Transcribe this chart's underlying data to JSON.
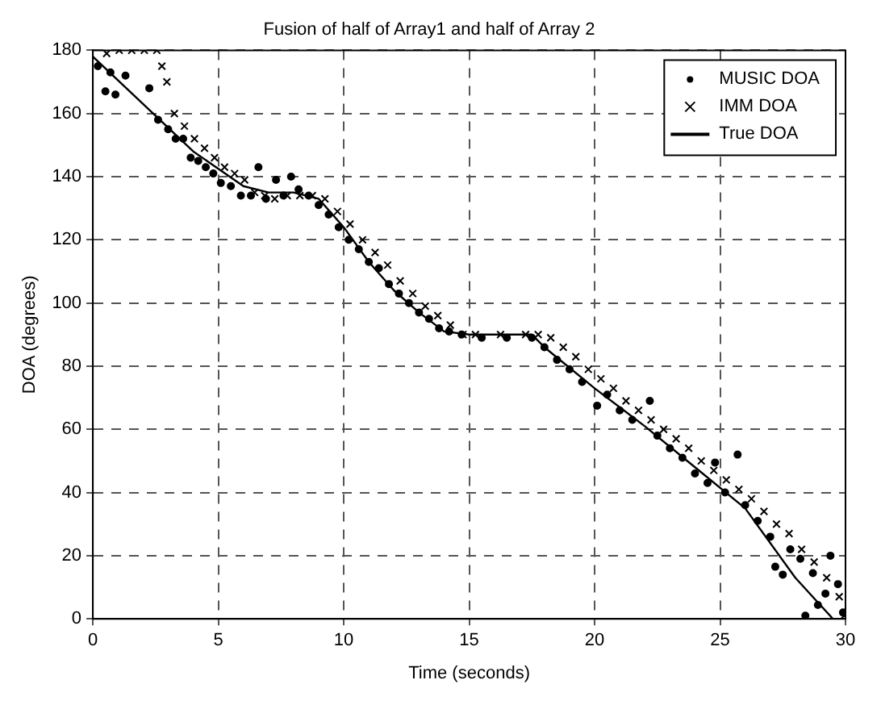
{
  "chart_data": {
    "type": "scatter",
    "title": "Fusion of half of Array1 and half of Array 2",
    "xlabel": "Time (seconds)",
    "ylabel": "DOA (degrees)",
    "xlim": [
      0,
      30
    ],
    "xticks": [
      0,
      5,
      10,
      15,
      20,
      25,
      30
    ],
    "ylim": [
      0,
      180
    ],
    "yticks": [
      0,
      20,
      40,
      60,
      80,
      100,
      120,
      140,
      160,
      180
    ],
    "grid": true,
    "legend": "top right",
    "series": [
      {
        "name": "MUSIC DOA",
        "type": "scatter",
        "marker": "circle",
        "color": "#000000",
        "x": [
          0.2,
          0.5,
          0.7,
          0.9,
          1.3,
          2.25,
          2.6,
          3.0,
          3.3,
          3.6,
          3.9,
          4.2,
          4.5,
          4.8,
          5.1,
          5.5,
          5.9,
          6.3,
          6.6,
          6.9,
          7.3,
          7.6,
          7.9,
          8.2,
          8.6,
          9.0,
          9.4,
          9.8,
          10.2,
          10.6,
          11.0,
          11.4,
          11.8,
          12.2,
          12.6,
          13.0,
          13.4,
          13.8,
          14.2,
          14.7,
          15.5,
          16.5,
          17.5,
          18.0,
          18.5,
          19.0,
          19.5,
          20.1,
          20.5,
          21.0,
          21.5,
          22.2,
          22.5,
          23.0,
          23.5,
          24.0,
          24.5,
          24.8,
          25.2,
          25.7,
          26.0,
          26.5,
          27.0,
          27.2,
          27.5,
          27.8,
          28.2,
          28.4,
          28.7,
          28.9,
          29.2,
          29.4,
          29.7,
          29.9
        ],
        "values": [
          175,
          167,
          173,
          166,
          172,
          168,
          158,
          155,
          152,
          152,
          146,
          145,
          143,
          141,
          138,
          137,
          134,
          134,
          143,
          133,
          139,
          134,
          140,
          136,
          134,
          131,
          128,
          124,
          120,
          117,
          113,
          111,
          106,
          103,
          100,
          97,
          95,
          92,
          91,
          90,
          89,
          89,
          89,
          86,
          82,
          79,
          75,
          67.5,
          71,
          66,
          63,
          69,
          58,
          54,
          51,
          46,
          43,
          49.5,
          40,
          52,
          36,
          31,
          26,
          16.5,
          14,
          22,
          19,
          1,
          14.5,
          4.4,
          8,
          20,
          11,
          2
        ]
      },
      {
        "name": "IMM DOA",
        "type": "scatter",
        "marker": "cross",
        "color": "#000000",
        "x": [
          0.55,
          1.05,
          1.55,
          2.05,
          2.55,
          2.75,
          2.95,
          3.25,
          3.65,
          4.05,
          4.45,
          4.85,
          5.25,
          5.65,
          6.05,
          6.45,
          6.85,
          7.25,
          7.75,
          8.25,
          8.75,
          9.25,
          9.75,
          10.25,
          10.75,
          11.25,
          11.75,
          12.25,
          12.75,
          13.25,
          13.75,
          14.25,
          14.75,
          15.25,
          16.25,
          17.25,
          17.75,
          18.25,
          18.75,
          19.25,
          19.75,
          20.25,
          20.75,
          21.25,
          21.75,
          22.25,
          22.75,
          23.25,
          23.75,
          24.25,
          24.75,
          25.25,
          25.75,
          26.25,
          26.75,
          27.25,
          27.75,
          28.25,
          28.75,
          29.25,
          29.75,
          29.95
        ],
        "values": [
          179,
          180,
          180,
          180,
          180,
          175,
          170,
          160,
          156,
          152,
          149,
          146,
          143,
          141,
          139,
          135,
          134,
          133,
          134,
          134,
          134,
          133,
          129,
          125,
          120,
          116,
          112,
          107,
          103,
          99,
          96,
          93,
          90,
          90,
          90,
          90,
          90,
          89,
          86,
          83,
          79,
          76,
          73,
          69,
          66,
          63,
          60,
          57,
          54,
          50,
          47,
          44,
          41,
          38,
          34,
          30,
          27,
          22,
          18,
          13,
          7,
          1
        ]
      },
      {
        "name": "True DOA",
        "type": "line",
        "marker": "none",
        "line_style": "solid",
        "color": "#000000",
        "x": [
          0,
          2,
          4,
          6,
          7,
          8,
          9,
          10,
          11,
          12,
          13,
          14,
          15,
          16,
          17,
          17.5,
          18,
          20,
          22,
          24,
          26,
          28,
          29.5
        ],
        "values": [
          178,
          163,
          148,
          137,
          135,
          135,
          133,
          124,
          113,
          104,
          97,
          91,
          90,
          90,
          90,
          90,
          86,
          73,
          61,
          48,
          35,
          13,
          0
        ]
      }
    ]
  }
}
